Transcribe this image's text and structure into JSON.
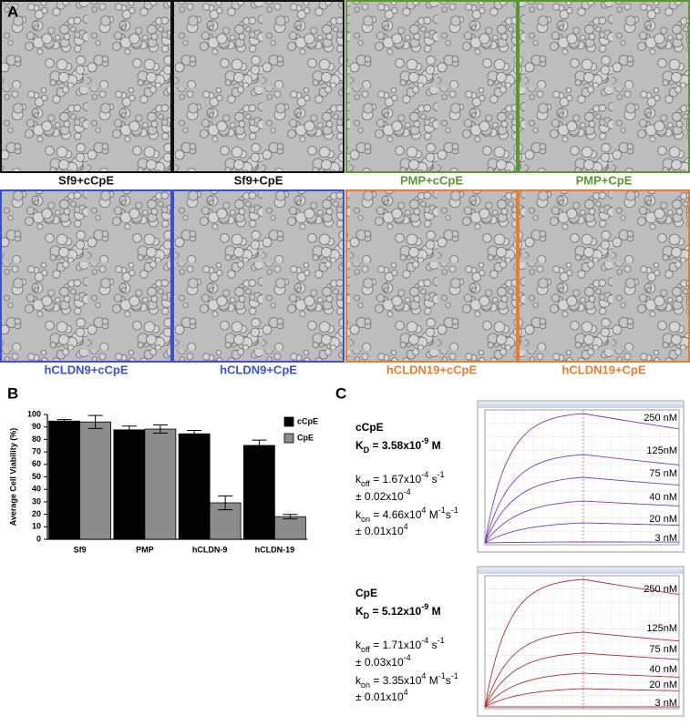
{
  "panel_labels": [
    "A",
    "B",
    "C"
  ],
  "micrographs": [
    {
      "label": "Sf9+cCpE",
      "color": "#111111"
    },
    {
      "label": "Sf9+CpE",
      "color": "#111111"
    },
    {
      "label": "PMP+cCpE",
      "color": "#5a9632"
    },
    {
      "label": "PMP+CpE",
      "color": "#5a9632"
    },
    {
      "label": "hCLDN9+cCpE",
      "color": "#3a4fd6"
    },
    {
      "label": "hCLDN9+CpE",
      "color": "#3a4fd6"
    },
    {
      "label": "hCLDN19+cCpE",
      "color": "#ea7d2c"
    },
    {
      "label": "hCLDN19+CpE",
      "color": "#ea7d2c"
    }
  ],
  "chart_data": {
    "type": "bar",
    "y_label": "Average Cell Viability (%)",
    "categories": [
      "Sf9",
      "PMP",
      "hCLDN-9",
      "hCLDN-19"
    ],
    "series": [
      {
        "name": "cCpE",
        "color": "#000000",
        "values": [
          94.7,
          87.7,
          84.5,
          75.2
        ],
        "errors": [
          1.2,
          3.0,
          2.7,
          4.3
        ]
      },
      {
        "name": "CpE",
        "color": "#8c8c8c",
        "values": [
          94.0,
          88.3,
          29.2,
          18.1
        ],
        "errors": [
          5.2,
          3.3,
          5.6,
          1.8
        ]
      }
    ],
    "ylim": [
      0,
      100
    ],
    "yticks": [
      0,
      10,
      20,
      30,
      40,
      50,
      60,
      70,
      80,
      90,
      100
    ],
    "legend": "top-right"
  },
  "binding": [
    {
      "curve_color": "#7a3cc0",
      "lines": [
        {
          "bold": true,
          "segments": [
            {
              "text": "cCpE",
              "pos": "base"
            }
          ]
        },
        {
          "bold": true,
          "segments": [
            {
              "text": "K",
              "pos": "base"
            },
            {
              "text": "D",
              "pos": "sub"
            },
            {
              "text": " = 3.58x10",
              "pos": "base"
            },
            {
              "text": "-9",
              "pos": "sup"
            },
            {
              "text": " M",
              "pos": "base"
            }
          ]
        },
        {
          "bold": false,
          "segments": [
            {
              "text": "k",
              "pos": "base"
            },
            {
              "text": "off",
              "pos": "sub"
            },
            {
              "text": " = 1.67x10",
              "pos": "base"
            },
            {
              "text": "-4",
              "pos": "sup"
            },
            {
              "text": " s",
              "pos": "base"
            },
            {
              "text": "-1",
              "pos": "sup"
            }
          ]
        },
        {
          "bold": false,
          "segments": [
            {
              "text": "± 0.02x10",
              "pos": "base"
            },
            {
              "text": "-4",
              "pos": "sup"
            }
          ]
        },
        {
          "bold": false,
          "segments": [
            {
              "text": "k",
              "pos": "base"
            },
            {
              "text": "on",
              "pos": "sub"
            },
            {
              "text": " = 4.66x10",
              "pos": "base"
            },
            {
              "text": "4",
              "pos": "sup"
            },
            {
              "text": " M",
              "pos": "base"
            },
            {
              "text": "-1",
              "pos": "sup"
            },
            {
              "text": "s",
              "pos": "base"
            },
            {
              "text": "-1",
              "pos": "sup"
            }
          ]
        },
        {
          "bold": false,
          "segments": [
            {
              "text": "± 0.01x10",
              "pos": "base"
            },
            {
              "text": "4",
              "pos": "sup"
            }
          ]
        }
      ],
      "curve_labels": [
        "250 nM",
        "125nM",
        "75 nM",
        "40 nM",
        "20 nM",
        "3 nM"
      ]
    },
    {
      "curve_color": "#b03030",
      "lines": [
        {
          "bold": true,
          "segments": [
            {
              "text": "CpE",
              "pos": "base"
            }
          ]
        },
        {
          "bold": true,
          "segments": [
            {
              "text": "K",
              "pos": "base"
            },
            {
              "text": "D",
              "pos": "sub"
            },
            {
              "text": " = 5.12x10",
              "pos": "base"
            },
            {
              "text": "-9",
              "pos": "sup"
            },
            {
              "text": " M",
              "pos": "base"
            }
          ]
        },
        {
          "bold": false,
          "segments": [
            {
              "text": "k",
              "pos": "base"
            },
            {
              "text": "off",
              "pos": "sub"
            },
            {
              "text": " = 1.71x10",
              "pos": "base"
            },
            {
              "text": "-4",
              "pos": "sup"
            },
            {
              "text": " s",
              "pos": "base"
            },
            {
              "text": "-1",
              "pos": "sup"
            }
          ]
        },
        {
          "bold": false,
          "segments": [
            {
              "text": "± 0.03x10",
              "pos": "base"
            },
            {
              "text": "-4",
              "pos": "sup"
            }
          ]
        },
        {
          "bold": false,
          "segments": [
            {
              "text": "k",
              "pos": "base"
            },
            {
              "text": "on",
              "pos": "sub"
            },
            {
              "text": " = 3.35x10",
              "pos": "base"
            },
            {
              "text": "4",
              "pos": "sup"
            },
            {
              "text": " M",
              "pos": "base"
            },
            {
              "text": "-1",
              "pos": "sup"
            },
            {
              "text": "s",
              "pos": "base"
            },
            {
              "text": "-1",
              "pos": "sup"
            }
          ]
        },
        {
          "bold": false,
          "segments": [
            {
              "text": "± 0.01x10",
              "pos": "base"
            },
            {
              "text": "4",
              "pos": "sup"
            }
          ]
        }
      ],
      "curve_labels": [
        "250 nM",
        "125nM",
        "75 nM",
        "40 nM",
        "20 nM",
        "3 nM"
      ]
    }
  ]
}
